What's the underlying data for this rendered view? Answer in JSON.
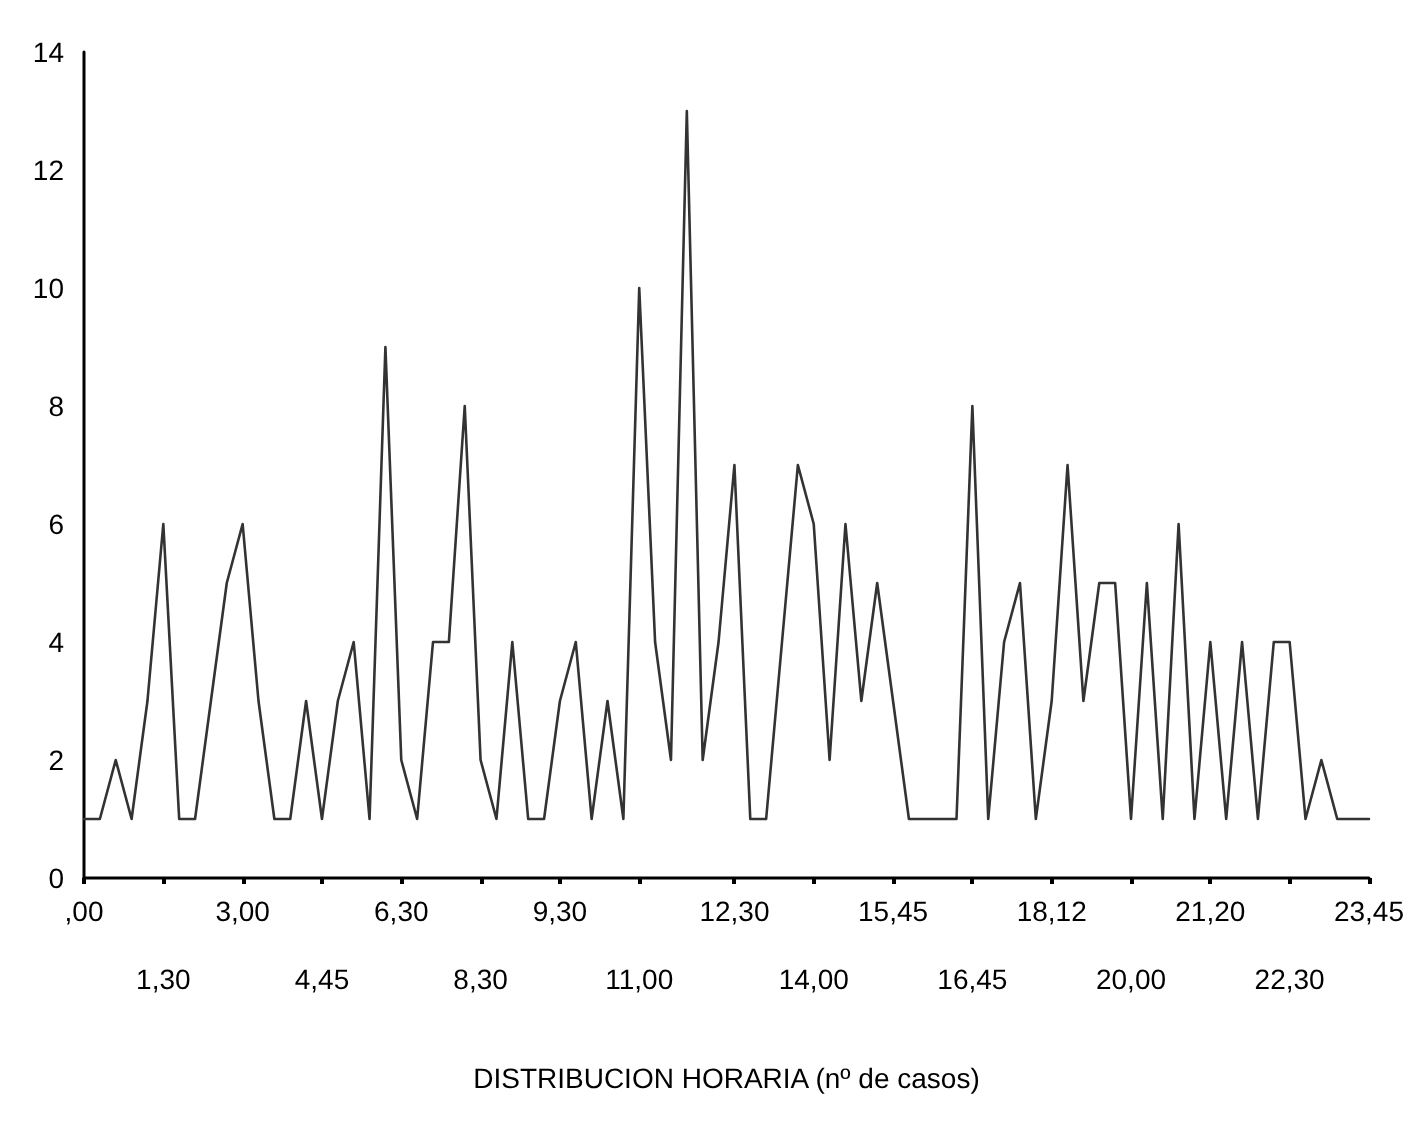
{
  "chart_data": {
    "type": "line",
    "xlabel": "DISTRIBUCION HORARIA (nº de casos)",
    "categories": [
      ",00",
      null,
      null,
      null,
      null,
      "1,30",
      null,
      null,
      null,
      null,
      "3,00",
      null,
      null,
      null,
      null,
      "4,45",
      null,
      null,
      null,
      null,
      "6,30",
      null,
      null,
      null,
      null,
      "8,30",
      null,
      null,
      null,
      null,
      "9,30",
      null,
      null,
      null,
      null,
      "11,00",
      null,
      null,
      null,
      null,
      null,
      "12,30",
      null,
      null,
      null,
      null,
      "14,00",
      null,
      null,
      null,
      null,
      "15,45",
      null,
      null,
      null,
      null,
      "16,45",
      null,
      null,
      null,
      null,
      "18,12",
      null,
      null,
      null,
      null,
      "20,00",
      null,
      null,
      null,
      null,
      "21,20",
      null,
      null,
      null,
      null,
      "22,30",
      null,
      null,
      null,
      null,
      "23,45"
    ],
    "series": [
      {
        "color": "#333333",
        "values": [
          1,
          1,
          2,
          1,
          3,
          6,
          1,
          1,
          3,
          5,
          6,
          3,
          1,
          1,
          3,
          1,
          3,
          4,
          1,
          9,
          2,
          1,
          4,
          4,
          8,
          2,
          1,
          4,
          1,
          1,
          3,
          4,
          1,
          3,
          1,
          10,
          4,
          2,
          13,
          2,
          4,
          7,
          1,
          1,
          4,
          7,
          6,
          2,
          6,
          3,
          5,
          3,
          1,
          1,
          1,
          1,
          8,
          1,
          4,
          5,
          1,
          3,
          7,
          3,
          5,
          5,
          1,
          5,
          1,
          6,
          1,
          4,
          1,
          4,
          1,
          4,
          4,
          1,
          2,
          1,
          1,
          1
        ]
      }
    ],
    "ylim": [
      0,
      14
    ],
    "yticks": [
      0,
      2,
      4,
      6,
      8,
      10,
      12,
      14
    ],
    "grid": false,
    "marker": "none",
    "line_style": "solid"
  }
}
